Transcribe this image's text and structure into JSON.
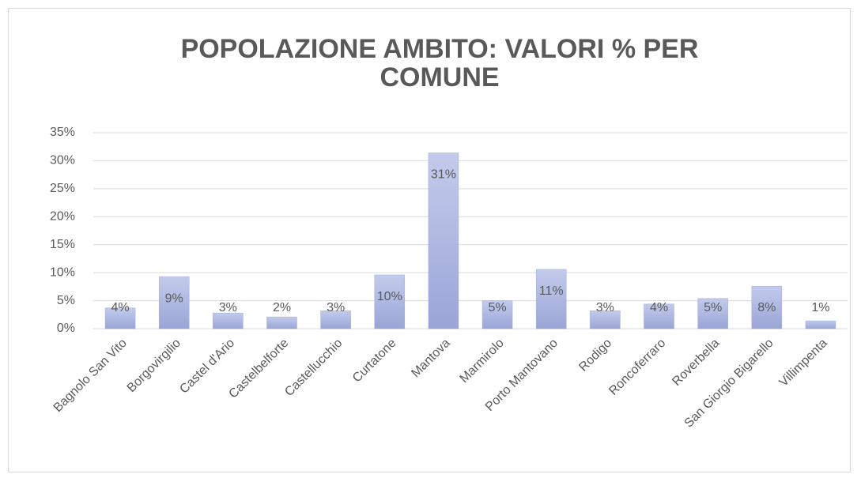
{
  "chart_data": {
    "type": "bar",
    "title": "POPOLAZIONE AMBITO: VALORI % PER COMUNE",
    "categories": [
      "Bagnolo San Vito",
      "Borgovirgilio",
      "Castel d'Ario",
      "Castelbelforte",
      "Castellucchio",
      "Curtatone",
      "Mantova",
      "Marmirolo",
      "Porto Mantovano",
      "Rodigo",
      "Roncoferraro",
      "Roverbella",
      "San Giorgio Bigarello",
      "Villimpenta"
    ],
    "values": [
      3.7,
      9.3,
      2.8,
      2.1,
      3.2,
      9.6,
      31.4,
      5.0,
      10.6,
      3.2,
      4.4,
      5.4,
      7.6,
      1.4
    ],
    "value_labels": [
      "4%",
      "9%",
      "3%",
      "2%",
      "3%",
      "10%",
      "31%",
      "5%",
      "11%",
      "3%",
      "4%",
      "5%",
      "8%",
      "1%"
    ],
    "color": "#a3acd9",
    "ylim": [
      0,
      35
    ],
    "yticks": [
      {
        "value": 0,
        "label": "0%"
      },
      {
        "value": 5,
        "label": "5%"
      },
      {
        "value": 10,
        "label": "10%"
      },
      {
        "value": 15,
        "label": "15%"
      },
      {
        "value": 20,
        "label": "20%"
      },
      {
        "value": 25,
        "label": "25%"
      },
      {
        "value": 30,
        "label": "30%"
      },
      {
        "value": 35,
        "label": "35%"
      }
    ],
    "grid": true
  }
}
